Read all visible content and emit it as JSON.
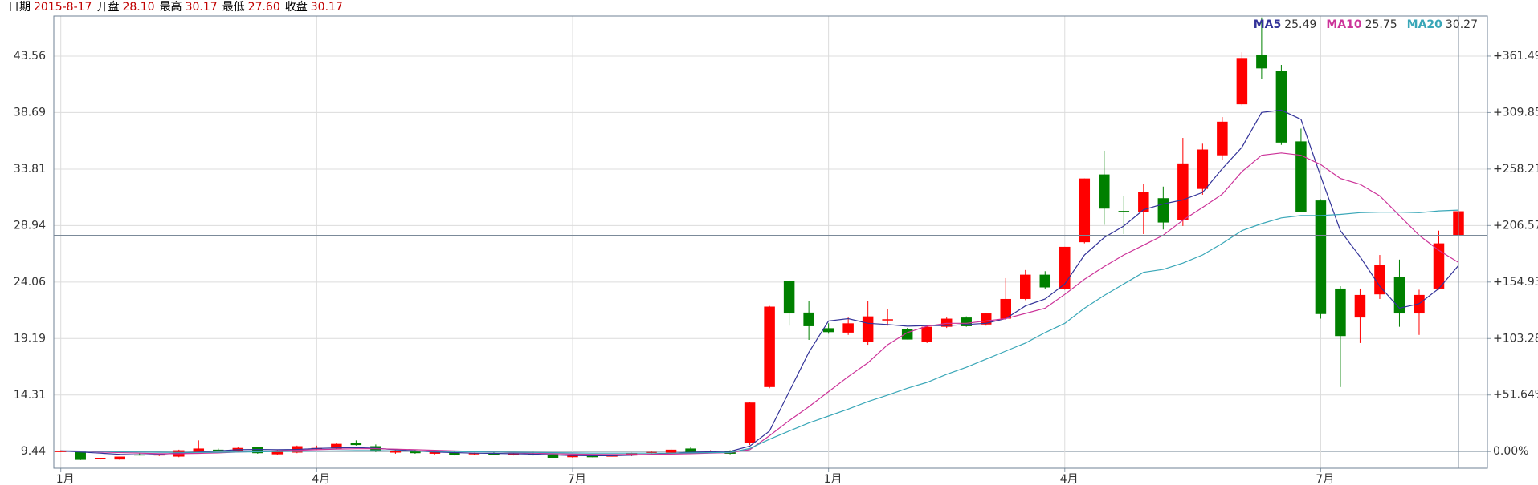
{
  "chart_data": {
    "type": "candlestick",
    "info": [
      {
        "label": "日期",
        "value": "2015-8-17"
      },
      {
        "label": "开盘",
        "value": "28.10"
      },
      {
        "label": "最高",
        "value": "30.17"
      },
      {
        "label": "最低",
        "value": "27.60"
      },
      {
        "label": "收盘",
        "value": "30.17"
      }
    ],
    "categories": [
      "1月",
      null,
      null,
      null,
      null,
      null,
      null,
      null,
      null,
      null,
      null,
      null,
      null,
      "4月",
      null,
      null,
      null,
      null,
      null,
      null,
      null,
      null,
      null,
      null,
      null,
      null,
      "7月",
      null,
      null,
      null,
      null,
      null,
      null,
      null,
      null,
      null,
      null,
      null,
      null,
      "1月",
      null,
      null,
      null,
      null,
      null,
      null,
      null,
      null,
      null,
      null,
      null,
      "4月",
      null,
      null,
      null,
      null,
      null,
      null,
      null,
      null,
      null,
      null,
      null,
      null,
      "7月",
      null,
      null,
      null,
      null,
      null,
      null,
      null
    ],
    "ohlc": [
      [
        9.45,
        9.55,
        9.4,
        9.5
      ],
      [
        9.44,
        9.5,
        8.7,
        8.72
      ],
      [
        8.8,
        8.9,
        8.75,
        8.9
      ],
      [
        8.75,
        9.0,
        8.7,
        9.0
      ],
      [
        9.2,
        9.3,
        9.1,
        9.15
      ],
      [
        9.1,
        9.25,
        9.05,
        9.2
      ],
      [
        9.0,
        9.6,
        8.95,
        9.55
      ],
      [
        9.4,
        10.4,
        9.35,
        9.7
      ],
      [
        9.6,
        9.7,
        9.5,
        9.55
      ],
      [
        9.45,
        9.85,
        9.4,
        9.75
      ],
      [
        9.8,
        9.85,
        9.25,
        9.3
      ],
      [
        9.2,
        9.55,
        9.15,
        9.5
      ],
      [
        9.35,
        9.95,
        9.3,
        9.9
      ],
      [
        9.7,
        9.95,
        9.6,
        9.75
      ],
      [
        9.7,
        10.2,
        9.65,
        10.1
      ],
      [
        10.15,
        10.4,
        9.95,
        10.0
      ],
      [
        9.9,
        10.05,
        9.4,
        9.45
      ],
      [
        9.35,
        9.55,
        9.25,
        9.5
      ],
      [
        9.5,
        9.6,
        9.25,
        9.3
      ],
      [
        9.25,
        9.45,
        9.2,
        9.4
      ],
      [
        9.35,
        9.45,
        9.1,
        9.15
      ],
      [
        9.2,
        9.35,
        9.15,
        9.3
      ],
      [
        9.25,
        9.4,
        9.15,
        9.2
      ],
      [
        9.15,
        9.35,
        9.1,
        9.3
      ],
      [
        9.25,
        9.4,
        9.1,
        9.15
      ],
      [
        9.2,
        9.3,
        8.85,
        8.9
      ],
      [
        8.95,
        9.15,
        8.9,
        9.1
      ],
      [
        9.05,
        9.2,
        8.95,
        9.0
      ],
      [
        9.05,
        9.15,
        9.0,
        9.1
      ],
      [
        9.1,
        9.35,
        9.05,
        9.3
      ],
      [
        9.3,
        9.5,
        9.25,
        9.4
      ],
      [
        9.35,
        9.7,
        9.3,
        9.6
      ],
      [
        9.7,
        9.8,
        9.3,
        9.35
      ],
      [
        9.35,
        9.55,
        9.3,
        9.5
      ],
      [
        9.45,
        9.55,
        9.2,
        9.25
      ],
      [
        10.2,
        13.7,
        10.0,
        13.66
      ],
      [
        15.0,
        22.0,
        14.9,
        21.94
      ],
      [
        24.14,
        24.2,
        20.3,
        21.35
      ],
      [
        21.43,
        22.45,
        19.07,
        20.25
      ],
      [
        20.08,
        20.5,
        19.6,
        19.74
      ],
      [
        19.7,
        21.0,
        19.5,
        20.5
      ],
      [
        18.9,
        22.4,
        18.65,
        21.1
      ],
      [
        20.8,
        21.7,
        20.3,
        20.85
      ],
      [
        20.0,
        20.1,
        19.1,
        19.1
      ],
      [
        18.9,
        20.3,
        18.8,
        20.2
      ],
      [
        20.2,
        21.0,
        20.1,
        20.9
      ],
      [
        21.0,
        21.1,
        20.2,
        20.25
      ],
      [
        20.4,
        21.4,
        20.3,
        21.35
      ],
      [
        20.9,
        24.4,
        20.8,
        22.6
      ],
      [
        22.6,
        25.1,
        22.5,
        24.7
      ],
      [
        24.7,
        25.0,
        23.5,
        23.6
      ],
      [
        23.46,
        27.1,
        23.4,
        27.1
      ],
      [
        27.5,
        33.0,
        27.4,
        33.0
      ],
      [
        33.35,
        35.4,
        29.0,
        30.4
      ],
      [
        30.2,
        31.5,
        28.2,
        30.1
      ],
      [
        30.1,
        32.5,
        28.2,
        31.8
      ],
      [
        31.3,
        32.3,
        28.6,
        29.2
      ],
      [
        29.4,
        36.5,
        28.9,
        34.3
      ],
      [
        32.1,
        36.0,
        31.6,
        35.5
      ],
      [
        35.0,
        38.3,
        34.6,
        37.9
      ],
      [
        39.4,
        43.9,
        39.3,
        43.4
      ],
      [
        43.7,
        46.9,
        41.6,
        42.5
      ],
      [
        42.3,
        42.8,
        35.9,
        36.1
      ],
      [
        36.2,
        37.3,
        30.1,
        30.1
      ],
      [
        31.1,
        31.2,
        20.9,
        21.3
      ],
      [
        23.5,
        23.7,
        15.0,
        19.4
      ],
      [
        21.0,
        23.5,
        18.8,
        22.95
      ],
      [
        23.0,
        26.4,
        22.6,
        25.55
      ],
      [
        24.5,
        26.0,
        20.2,
        21.35
      ],
      [
        21.35,
        23.4,
        19.5,
        22.95
      ],
      [
        23.5,
        28.5,
        23.4,
        27.4
      ],
      [
        28.1,
        30.17,
        27.6,
        30.17
      ]
    ],
    "up_color": "#ff0000",
    "down_color": "#008000",
    "series": [
      {
        "name": "MA5",
        "color": "#333399",
        "current": 25.49,
        "values": [
          9.5,
          9.4,
          9.3,
          9.2,
          9.15,
          9.2,
          9.3,
          9.4,
          9.5,
          9.6,
          9.62,
          9.6,
          9.62,
          9.7,
          9.75,
          9.78,
          9.72,
          9.6,
          9.5,
          9.4,
          9.35,
          9.3,
          9.28,
          9.25,
          9.22,
          9.15,
          9.1,
          9.08,
          9.08,
          9.12,
          9.2,
          9.3,
          9.38,
          9.42,
          9.45,
          9.9,
          11.2,
          14.6,
          18.0,
          20.7,
          20.9,
          20.5,
          20.4,
          20.25,
          20.3,
          20.3,
          20.4,
          20.5,
          20.9,
          22.0,
          22.6,
          23.9,
          26.4,
          27.9,
          28.9,
          30.3,
          30.8,
          31.15,
          31.8,
          33.85,
          35.7,
          38.7,
          38.9,
          38.1,
          33.2,
          28.5,
          26.25,
          23.7,
          21.8,
          22.2,
          23.5,
          25.49
        ]
      },
      {
        "name": "MA10",
        "color": "#cc3399",
        "current": 25.75,
        "values": [
          9.5,
          9.48,
          9.4,
          9.35,
          9.3,
          9.25,
          9.25,
          9.28,
          9.32,
          9.4,
          9.45,
          9.5,
          9.55,
          9.6,
          9.65,
          9.68,
          9.68,
          9.65,
          9.6,
          9.55,
          9.5,
          9.45,
          9.4,
          9.35,
          9.3,
          9.25,
          9.22,
          9.2,
          9.18,
          9.18,
          9.2,
          9.22,
          9.25,
          9.3,
          9.35,
          9.6,
          10.8,
          12.1,
          13.3,
          14.6,
          15.9,
          17.1,
          18.65,
          19.7,
          20.25,
          20.5,
          20.5,
          20.7,
          20.9,
          21.35,
          21.8,
          23.0,
          24.3,
          25.4,
          26.4,
          27.25,
          28.1,
          29.4,
          30.5,
          31.65,
          33.6,
          35.0,
          35.2,
          35.0,
          34.2,
          33.0,
          32.5,
          31.5,
          29.8,
          28.1,
          26.8,
          25.75
        ]
      },
      {
        "name": "MA20",
        "color": "#3aa7b8",
        "current": 30.27,
        "values": [
          9.5,
          9.48,
          9.45,
          9.42,
          9.4,
          9.38,
          9.36,
          9.36,
          9.38,
          9.4,
          9.42,
          9.44,
          9.46,
          9.48,
          9.5,
          9.52,
          9.52,
          9.5,
          9.48,
          9.46,
          9.44,
          9.42,
          9.4,
          9.38,
          9.36,
          9.34,
          9.32,
          9.3,
          9.3,
          9.3,
          9.3,
          9.3,
          9.32,
          9.34,
          9.36,
          9.7,
          10.5,
          11.2,
          11.9,
          12.5,
          13.1,
          13.75,
          14.3,
          14.9,
          15.4,
          16.1,
          16.7,
          17.4,
          18.1,
          18.8,
          19.7,
          20.5,
          21.8,
          22.9,
          23.9,
          24.9,
          25.15,
          25.7,
          26.4,
          27.4,
          28.5,
          29.1,
          29.6,
          29.8,
          29.8,
          29.9,
          30.05,
          30.1,
          30.1,
          30.05,
          30.2,
          30.27
        ]
      }
    ],
    "ylim": [
      8.0,
      47.02
    ],
    "yticks": [
      9.44,
      14.31,
      19.19,
      24.06,
      28.94,
      33.81,
      38.69,
      43.56
    ],
    "y2lim": [
      -15.25,
      398.1
    ],
    "y2ticks": [
      {
        "value": 0,
        "label": "0.00%"
      },
      {
        "value": 51.64,
        "label": "+51.64%"
      },
      {
        "value": 103.28,
        "label": "+103.28%"
      },
      {
        "value": 154.93,
        "label": "+154.93%"
      },
      {
        "value": 206.57,
        "label": "+206.57%"
      },
      {
        "value": 258.21,
        "label": "+258.21%"
      },
      {
        "value": 309.85,
        "label": "+309.85%"
      },
      {
        "value": 361.49,
        "label": "+361.49%"
      }
    ],
    "grid": true
  }
}
